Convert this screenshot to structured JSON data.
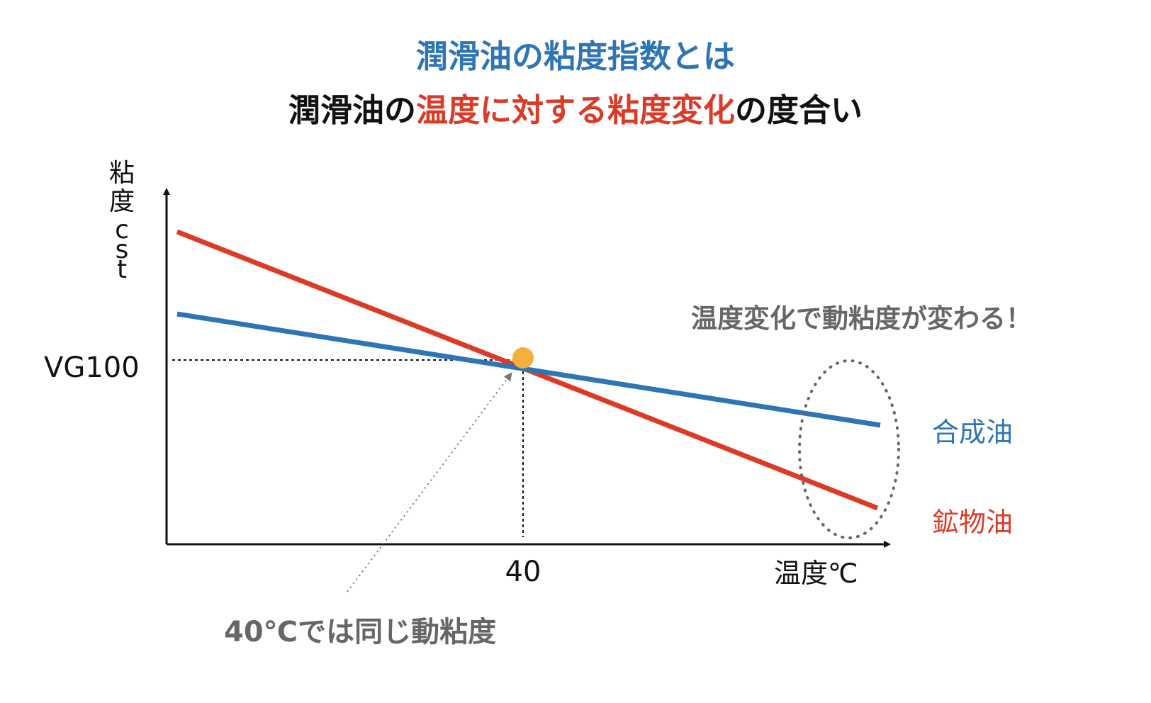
{
  "title": {
    "line1": "潤滑油の粘度指数とは",
    "line2_part1": "潤滑油の",
    "line2_part2": "温度に対する粘度変化",
    "line2_part3": "の度合い"
  },
  "axes": {
    "y_label": "粘度cst",
    "x_label": "温度℃",
    "y_marker_label": "VG100",
    "x_marker_label": "40"
  },
  "annotations": {
    "change_note": "温度変化で動粘度が変わる！",
    "same_note": "40℃では同じ動粘度"
  },
  "series": {
    "synthetic": {
      "name": "合成油",
      "color": "#2e75b6"
    },
    "mineral": {
      "name": "鉱物油",
      "color": "#db3a26"
    }
  },
  "colors": {
    "accent_blue": "#2e75b6",
    "accent_red": "#db3a26",
    "intersection": "#f3b13c",
    "note_gray": "#666666"
  }
}
